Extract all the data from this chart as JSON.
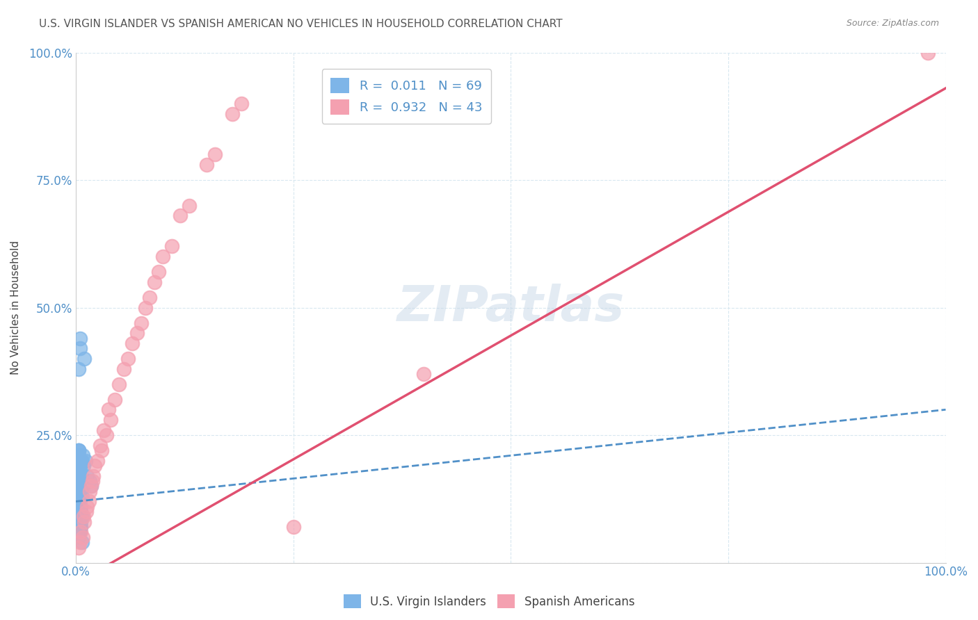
{
  "title": "U.S. VIRGIN ISLANDER VS SPANISH AMERICAN NO VEHICLES IN HOUSEHOLD CORRELATION CHART",
  "source": "Source: ZipAtlas.com",
  "xlabel": "",
  "ylabel": "No Vehicles in Household",
  "xlim": [
    0.0,
    1.0
  ],
  "ylim": [
    0.0,
    1.0
  ],
  "xticks": [
    0.0,
    0.25,
    0.5,
    0.75,
    1.0
  ],
  "yticks": [
    0.0,
    0.25,
    0.5,
    0.75,
    1.0
  ],
  "xtick_labels": [
    "0.0%",
    "",
    "",
    "",
    "100.0%"
  ],
  "ytick_labels": [
    "",
    "25.0%",
    "50.0%",
    "75.0%",
    "100.0%"
  ],
  "watermark": "ZIPatlas",
  "legend_r1": "R =  0.011   N = 69",
  "legend_r2": "R =  0.932   N = 43",
  "legend_label1": "U.S. Virgin Islanders",
  "legend_label2": "Spanish Americans",
  "blue_color": "#7EB5E8",
  "pink_color": "#F4A0B0",
  "blue_line_color": "#5090C8",
  "pink_line_color": "#E05070",
  "axis_color": "#5090C8",
  "grid_color": "#D8E8F0",
  "title_color": "#444444",
  "blue_R": 0.011,
  "blue_N": 69,
  "pink_R": 0.932,
  "pink_N": 43,
  "blue_slope": 0.18,
  "blue_intercept": 0.12,
  "pink_slope": 0.97,
  "pink_intercept": -0.04,
  "blue_points_x": [
    0.005,
    0.01,
    0.005,
    0.003,
    0.007,
    0.004,
    0.002,
    0.006,
    0.008,
    0.003,
    0.004,
    0.005,
    0.003,
    0.006,
    0.004,
    0.003,
    0.005,
    0.007,
    0.004,
    0.002,
    0.003,
    0.004,
    0.005,
    0.006,
    0.003,
    0.002,
    0.004,
    0.005,
    0.003,
    0.006,
    0.004,
    0.003,
    0.005,
    0.004,
    0.003,
    0.006,
    0.005,
    0.004,
    0.003,
    0.007,
    0.003,
    0.004,
    0.005,
    0.004,
    0.003,
    0.006,
    0.005,
    0.004,
    0.003,
    0.007,
    0.001,
    0.002,
    0.003,
    0.004,
    0.005,
    0.008,
    0.009,
    0.011,
    0.013,
    0.016,
    0.018,
    0.005,
    0.003,
    0.006,
    0.002,
    0.007,
    0.004,
    0.008,
    0.003
  ],
  "blue_points_y": [
    0.44,
    0.4,
    0.42,
    0.38,
    0.2,
    0.18,
    0.17,
    0.16,
    0.15,
    0.19,
    0.18,
    0.17,
    0.22,
    0.2,
    0.16,
    0.15,
    0.14,
    0.13,
    0.18,
    0.17,
    0.16,
    0.12,
    0.11,
    0.1,
    0.22,
    0.21,
    0.2,
    0.19,
    0.17,
    0.15,
    0.12,
    0.11,
    0.1,
    0.09,
    0.08,
    0.07,
    0.06,
    0.18,
    0.17,
    0.16,
    0.13,
    0.12,
    0.11,
    0.1,
    0.09,
    0.08,
    0.07,
    0.06,
    0.05,
    0.04,
    0.14,
    0.13,
    0.22,
    0.17,
    0.16,
    0.15,
    0.19,
    0.2,
    0.17,
    0.16,
    0.15,
    0.13,
    0.12,
    0.11,
    0.1,
    0.09,
    0.08,
    0.21,
    0.18
  ],
  "pink_points_x": [
    0.005,
    0.008,
    0.01,
    0.012,
    0.015,
    0.018,
    0.02,
    0.025,
    0.03,
    0.035,
    0.04,
    0.05,
    0.06,
    0.07,
    0.08,
    0.09,
    0.1,
    0.12,
    0.15,
    0.18,
    0.003,
    0.006,
    0.009,
    0.013,
    0.016,
    0.019,
    0.022,
    0.028,
    0.032,
    0.038,
    0.045,
    0.055,
    0.065,
    0.075,
    0.085,
    0.095,
    0.11,
    0.13,
    0.16,
    0.19,
    0.25,
    0.4,
    0.98
  ],
  "pink_points_y": [
    0.04,
    0.05,
    0.08,
    0.1,
    0.12,
    0.15,
    0.17,
    0.2,
    0.22,
    0.25,
    0.28,
    0.35,
    0.4,
    0.45,
    0.5,
    0.55,
    0.6,
    0.68,
    0.78,
    0.88,
    0.03,
    0.06,
    0.09,
    0.11,
    0.14,
    0.16,
    0.19,
    0.23,
    0.26,
    0.3,
    0.32,
    0.38,
    0.43,
    0.47,
    0.52,
    0.57,
    0.62,
    0.7,
    0.8,
    0.9,
    0.07,
    0.37,
    1.0
  ]
}
